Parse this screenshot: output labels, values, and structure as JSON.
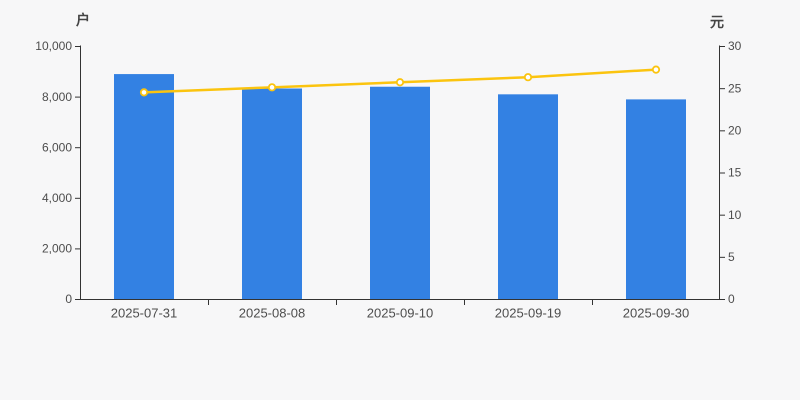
{
  "page": {
    "background_color": "#f7f7f8"
  },
  "chart_data": {
    "type": "bar",
    "subtype": "bar-and-line-dual-axis",
    "title": "",
    "legend": false,
    "grid": false,
    "categories": [
      "2025-07-31",
      "2025-08-08",
      "2025-09-10",
      "2025-09-19",
      "2025-09-30"
    ],
    "series": [
      {
        "name": "bar-series",
        "type": "bar",
        "axis": "left",
        "color": "#3381e3",
        "values": [
          8890,
          8320,
          8390,
          8090,
          7890
        ]
      },
      {
        "name": "line-series",
        "type": "line",
        "axis": "right",
        "color": "#fbc40f",
        "marker": "empty-circle",
        "marker_fill": "#ffffff",
        "values": [
          24.5,
          25.1,
          25.7,
          26.3,
          27.2
        ]
      }
    ],
    "left_axis": {
      "label": "户",
      "min": 0,
      "max": 10000,
      "tick_step": 2000,
      "tick_labels": [
        "0",
        "2,000",
        "4,000",
        "6,000",
        "8,000",
        "10,000"
      ]
    },
    "right_axis": {
      "label": "元",
      "min": 0,
      "max": 30,
      "tick_step": 5,
      "tick_labels": [
        "0",
        "5",
        "10",
        "15",
        "20",
        "25",
        "30"
      ]
    },
    "axis_line_color": "#333333",
    "tick_label_color": "#4d4d4d"
  }
}
